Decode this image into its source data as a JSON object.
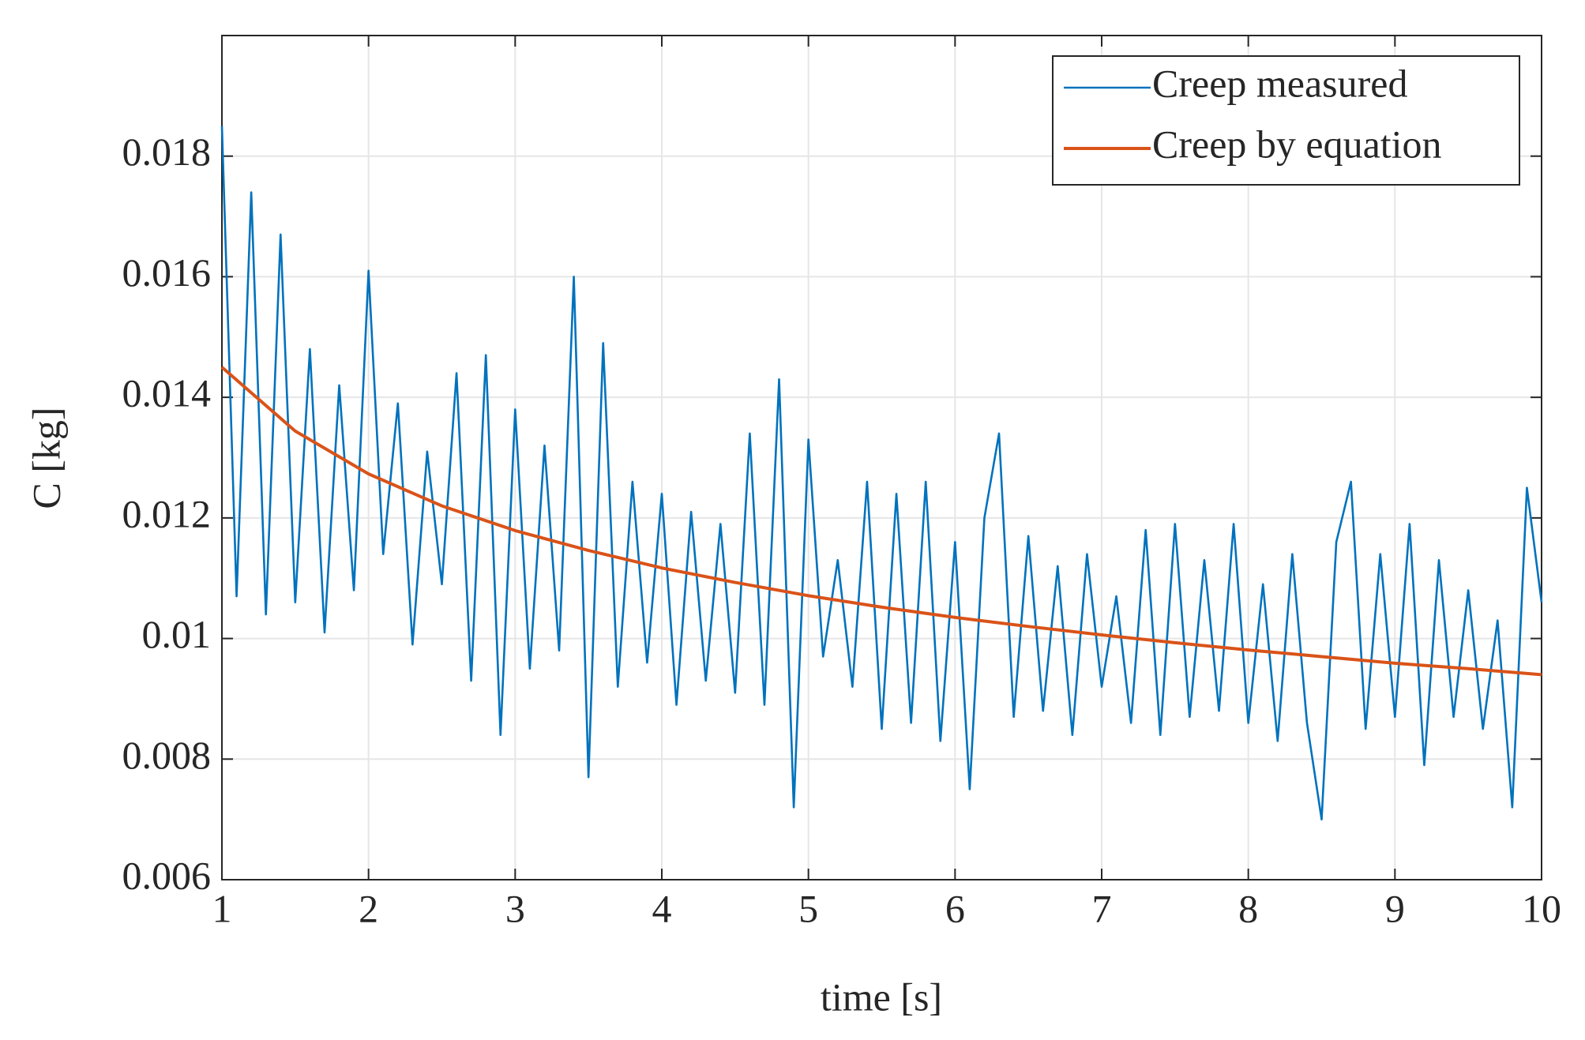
{
  "chart_data": {
    "type": "line",
    "xlabel": "time [s]",
    "ylabel": "C [kg]",
    "xlim": [
      1,
      10
    ],
    "ylim": [
      0.006,
      0.02
    ],
    "xticks": [
      1,
      2,
      3,
      4,
      5,
      6,
      7,
      8,
      9,
      10
    ],
    "yticks": [
      0.006,
      0.008,
      0.01,
      0.012,
      0.014,
      0.016,
      0.018
    ],
    "grid": true,
    "legend": "upper right",
    "series": [
      {
        "name": "Creep measured",
        "color": "#0072bd",
        "x": [
          1.0,
          1.1,
          1.2,
          1.3,
          1.4,
          1.5,
          1.6,
          1.7,
          1.8,
          1.9,
          2.0,
          2.1,
          2.2,
          2.3,
          2.4,
          2.5,
          2.6,
          2.7,
          2.8,
          2.9,
          3.0,
          3.1,
          3.2,
          3.3,
          3.4,
          3.5,
          3.6,
          3.7,
          3.8,
          3.9,
          4.0,
          4.1,
          4.2,
          4.3,
          4.4,
          4.5,
          4.6,
          4.7,
          4.8,
          4.9,
          5.0,
          5.1,
          5.2,
          5.3,
          5.4,
          5.5,
          5.6,
          5.7,
          5.8,
          5.9,
          6.0,
          6.1,
          6.2,
          6.3,
          6.4,
          6.5,
          6.6,
          6.7,
          6.8,
          6.9,
          7.0,
          7.1,
          7.2,
          7.3,
          7.4,
          7.5,
          7.6,
          7.7,
          7.8,
          7.9,
          8.0,
          8.1,
          8.2,
          8.3,
          8.4,
          8.5,
          8.6,
          8.7,
          8.8,
          8.9,
          9.0,
          9.1,
          9.2,
          9.3,
          9.4,
          9.5,
          9.6,
          9.7,
          9.8,
          9.9,
          10.0
        ],
        "values": [
          0.0185,
          0.0107,
          0.0174,
          0.0104,
          0.0167,
          0.0106,
          0.0148,
          0.0101,
          0.0142,
          0.0108,
          0.0161,
          0.0114,
          0.0139,
          0.0099,
          0.0131,
          0.0109,
          0.0144,
          0.0093,
          0.0147,
          0.0084,
          0.0138,
          0.0095,
          0.0132,
          0.0098,
          0.016,
          0.0077,
          0.0149,
          0.0092,
          0.0126,
          0.0096,
          0.0124,
          0.0089,
          0.0121,
          0.0093,
          0.0119,
          0.0091,
          0.0134,
          0.0089,
          0.0143,
          0.0072,
          0.0133,
          0.0097,
          0.0113,
          0.0092,
          0.0126,
          0.0085,
          0.0124,
          0.0086,
          0.0126,
          0.0083,
          0.0116,
          0.0075,
          0.012,
          0.0134,
          0.0087,
          0.0117,
          0.0088,
          0.0112,
          0.0084,
          0.0114,
          0.0092,
          0.0107,
          0.0086,
          0.0118,
          0.0084,
          0.0119,
          0.0087,
          0.0113,
          0.0088,
          0.0119,
          0.0086,
          0.0109,
          0.0083,
          0.0114,
          0.0086,
          0.007,
          0.0116,
          0.0126,
          0.0085,
          0.0114,
          0.0087,
          0.0119,
          0.0079,
          0.0113,
          0.0087,
          0.0108,
          0.0085,
          0.0103,
          0.0072,
          0.0125,
          0.0106
        ]
      },
      {
        "name": "Creep by equation",
        "color": "#d95319",
        "x": [
          1,
          1.5,
          2,
          2.5,
          3,
          3.5,
          4,
          4.5,
          5,
          5.5,
          6,
          6.5,
          7,
          7.5,
          8,
          8.5,
          9,
          9.5,
          10
        ],
        "values": [
          0.0145,
          0.01344,
          0.01273,
          0.0122,
          0.01179,
          0.01146,
          0.01117,
          0.01093,
          0.01071,
          0.01052,
          0.01035,
          0.0102,
          0.01006,
          0.00993,
          0.00981,
          0.0097,
          0.00959,
          0.0095,
          0.0094
        ]
      }
    ]
  }
}
